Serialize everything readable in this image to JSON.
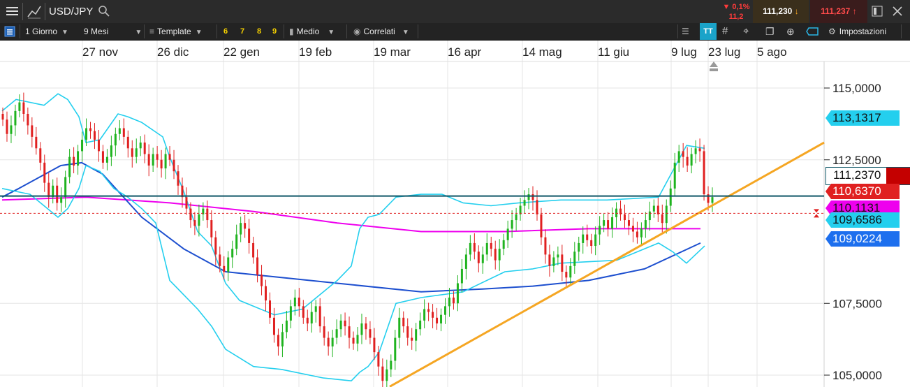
{
  "topbar": {
    "symbol": "USD/JPY",
    "change_pct": "▼ 0,1%",
    "change_pts": "11,2",
    "bid": "111,230",
    "ask": "111,237"
  },
  "toolbar": {
    "timeframe": "1 Giorno",
    "range": "9 Mesi",
    "template_label": "Template",
    "quick_buttons": [
      "6",
      "7",
      "8",
      "9"
    ],
    "chart_style": "Medio",
    "related_label": "Correlati",
    "font_label": "TT",
    "settings_label": "Impostazioni"
  },
  "colors": {
    "up": "#1fb31f",
    "down": "#e02020",
    "bollinger": "#24cfee",
    "ma_blue": "#1d4fcf",
    "ma_magenta": "#ee00ee",
    "trendline": "#f5a623",
    "last_price": "#0d5566"
  },
  "chart_data": {
    "type": "candlestick",
    "symbol": "USD/JPY",
    "y_range": [
      104.0,
      116.0
    ],
    "y_ticks": [
      "115,0000",
      "112,5000",
      "107,5000",
      "105,0000"
    ],
    "x_ticks": [
      "27 nov",
      "26 dic",
      "22 gen",
      "19 feb",
      "19 mar",
      "16 apr",
      "14 mag",
      "11 giu",
      "9 lug",
      "23 lug",
      "5 ago"
    ],
    "closes": [
      113.9,
      113.4,
      113.7,
      114.2,
      114.5,
      114.1,
      113.7,
      113.3,
      112.9,
      112.4,
      111.7,
      111.2,
      111.6,
      111.0,
      111.2,
      111.9,
      112.6,
      112.3,
      112.8,
      113.2,
      113.6,
      113.5,
      113.2,
      112.8,
      112.4,
      112.6,
      113.0,
      113.4,
      113.6,
      113.3,
      112.9,
      112.6,
      112.9,
      113.1,
      112.7,
      112.3,
      112.7,
      112.5,
      112.2,
      112.7,
      112.5,
      112.1,
      111.6,
      111.2,
      110.8,
      110.4,
      110.2,
      110.6,
      110.8,
      110.4,
      109.8,
      109.2,
      108.8,
      108.6,
      109.1,
      109.4,
      109.9,
      110.3,
      110.1,
      109.6,
      109.1,
      108.5,
      108.1,
      107.6,
      107.0,
      106.4,
      106.0,
      106.5,
      106.9,
      107.4,
      107.7,
      107.4,
      107.0,
      106.8,
      107.2,
      107.4,
      106.7,
      106.3,
      106.0,
      106.3,
      106.6,
      106.9,
      106.7,
      106.3,
      106.1,
      106.4,
      106.8,
      106.6,
      106.3,
      105.8,
      105.3,
      104.8,
      105.2,
      105.5,
      106.3,
      107.0,
      106.7,
      106.3,
      106.2,
      106.6,
      106.9,
      107.3,
      107.2,
      107.0,
      106.8,
      107.1,
      107.4,
      107.7,
      107.5,
      108.2,
      108.7,
      109.2,
      109.6,
      109.3,
      108.9,
      109.2,
      109.6,
      109.4,
      109.0,
      109.4,
      109.7,
      110.1,
      110.4,
      110.6,
      110.9,
      111.1,
      111.3,
      111.1,
      110.6,
      109.8,
      109.2,
      108.8,
      109.1,
      109.2,
      108.6,
      108.4,
      108.8,
      109.3,
      109.6,
      109.9,
      109.7,
      109.5,
      109.9,
      110.2,
      110.4,
      110.1,
      110.5,
      110.8,
      110.6,
      110.4,
      110.2,
      110.0,
      109.8,
      110.1,
      110.4,
      110.7,
      110.9,
      110.6,
      110.3,
      110.9,
      111.5,
      112.4,
      112.8,
      112.6,
      112.3,
      112.7,
      112.9,
      112.8,
      111.3,
      111.0,
      111.2
    ],
    "moving_average_blue": [
      [
        0,
        111.2
      ],
      [
        12,
        111.5
      ],
      [
        27,
        111.9
      ],
      [
        42,
        112.3
      ],
      [
        57,
        112.4
      ],
      [
        72,
        112.0
      ],
      [
        100,
        110.5
      ],
      [
        130,
        109.4
      ],
      [
        160,
        108.6
      ],
      [
        200,
        108.4
      ],
      [
        240,
        108.2
      ],
      [
        300,
        107.9
      ],
      [
        344,
        108.0
      ],
      [
        380,
        108.1
      ],
      [
        420,
        108.3
      ],
      [
        460,
        108.7
      ],
      [
        500,
        109.6
      ]
    ],
    "moving_average_magenta": [
      [
        0,
        111.1
      ],
      [
        60,
        111.2
      ],
      [
        120,
        111.0
      ],
      [
        180,
        110.7
      ],
      [
        240,
        110.3
      ],
      [
        300,
        110.0
      ],
      [
        360,
        110.0
      ],
      [
        420,
        110.1
      ],
      [
        500,
        110.1
      ]
    ],
    "bollinger_upper": [
      [
        0,
        114.2
      ],
      [
        10,
        114.6
      ],
      [
        30,
        114.4
      ],
      [
        40,
        114.8
      ],
      [
        47,
        114.6
      ],
      [
        55,
        114.0
      ],
      [
        60,
        113.1
      ],
      [
        70,
        113.2
      ],
      [
        83,
        114.1
      ],
      [
        90,
        114.0
      ],
      [
        100,
        113.8
      ],
      [
        115,
        113.3
      ],
      [
        120,
        112.6
      ],
      [
        130,
        111.4
      ],
      [
        140,
        110.0
      ],
      [
        150,
        109.5
      ],
      [
        160,
        108.2
      ],
      [
        170,
        107.6
      ],
      [
        180,
        107.4
      ],
      [
        195,
        107.1
      ],
      [
        215,
        107.3
      ],
      [
        240,
        108.3
      ],
      [
        250,
        108.8
      ],
      [
        256,
        110.1
      ],
      [
        262,
        110.5
      ],
      [
        270,
        110.6
      ],
      [
        282,
        111.2
      ],
      [
        300,
        111.3
      ],
      [
        315,
        111.3
      ],
      [
        330,
        111.0
      ],
      [
        350,
        110.9
      ],
      [
        370,
        111.0
      ],
      [
        400,
        111.1
      ],
      [
        433,
        111.1
      ],
      [
        470,
        111.2
      ],
      [
        490,
        113.0
      ],
      [
        503,
        112.9
      ]
    ],
    "bollinger_lower": [
      [
        0,
        111.5
      ],
      [
        10,
        111.4
      ],
      [
        20,
        111.3
      ],
      [
        30,
        110.9
      ],
      [
        40,
        110.5
      ],
      [
        47,
        110.8
      ],
      [
        55,
        111.5
      ],
      [
        60,
        112.3
      ],
      [
        70,
        112.1
      ],
      [
        80,
        111.5
      ],
      [
        90,
        111.2
      ],
      [
        100,
        110.8
      ],
      [
        110,
        110.3
      ],
      [
        120,
        108.3
      ],
      [
        130,
        107.8
      ],
      [
        140,
        107.3
      ],
      [
        150,
        106.7
      ],
      [
        160,
        105.9
      ],
      [
        170,
        105.6
      ],
      [
        180,
        105.3
      ],
      [
        200,
        105.2
      ],
      [
        230,
        104.9
      ],
      [
        250,
        104.8
      ],
      [
        256,
        105.1
      ],
      [
        262,
        105.3
      ],
      [
        270,
        105.8
      ],
      [
        282,
        107.5
      ],
      [
        300,
        107.7
      ],
      [
        330,
        107.9
      ],
      [
        360,
        108.6
      ],
      [
        380,
        108.7
      ],
      [
        400,
        108.9
      ],
      [
        440,
        109.0
      ],
      [
        470,
        109.6
      ],
      [
        480,
        109.3
      ],
      [
        490,
        108.9
      ],
      [
        503,
        109.5
      ]
    ],
    "trendline": {
      "start_index": 250,
      "start_value": 104.6,
      "end_index": 520,
      "end_value": 113.1
    },
    "price_tags": [
      {
        "value": 113.1317,
        "label": "113,1317",
        "color": "#24cfee"
      },
      {
        "value": 111.237,
        "label": "111,2370",
        "color": "#24cfee"
      },
      {
        "value": 110.637,
        "label": "110,6370",
        "color": "#e02020"
      },
      {
        "value": 110.1131,
        "label": "110,1131",
        "color": "#ee00ee"
      },
      {
        "value": 109.6586,
        "label": "109,6586",
        "color": "#24cfee"
      },
      {
        "value": 109.0224,
        "label": "109,0224",
        "color": "#1d6fee"
      }
    ],
    "last_price": 111.237,
    "bid_line": 110.637
  }
}
